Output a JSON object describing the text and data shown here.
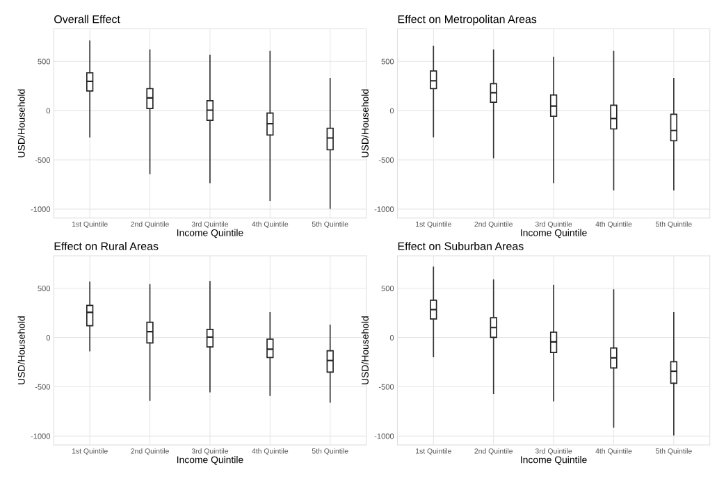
{
  "chart_data": [
    {
      "type": "box",
      "title": "Overall Effect",
      "xlabel": "Income Quintile",
      "ylabel": "USD/Household",
      "categories": [
        "1st Quintile",
        "2nd Quintile",
        "3rd Quintile",
        "4th Quintile",
        "5th Quintile"
      ],
      "ylim": [
        -1090,
        830
      ],
      "yticks": [
        -1000,
        -500,
        0,
        500
      ],
      "grid": true,
      "boxes": [
        {
          "low": -267,
          "q1": 200,
          "median": 297,
          "q3": 384,
          "high": 706
        },
        {
          "low": -639,
          "q1": 21,
          "median": 129,
          "q3": 223,
          "high": 614
        },
        {
          "low": -731,
          "q1": -99,
          "median": 5,
          "q3": 101,
          "high": 561
        },
        {
          "low": -910,
          "q1": -248,
          "median": -133,
          "q3": -25,
          "high": 602
        },
        {
          "low": -991,
          "q1": -398,
          "median": -278,
          "q3": -179,
          "high": 326
        }
      ]
    },
    {
      "type": "box",
      "title": "Effect on Metropolitan Areas",
      "xlabel": "Income Quintile",
      "ylabel": "USD/Household",
      "categories": [
        "1st Quintile",
        "2nd Quintile",
        "3rd Quintile",
        "4th Quintile",
        "5th Quintile"
      ],
      "ylim": [
        -1090,
        830
      ],
      "yticks": [
        -1000,
        -500,
        0,
        500
      ],
      "grid": true,
      "boxes": [
        {
          "low": -264,
          "q1": 223,
          "median": 303,
          "q3": 402,
          "high": 653
        },
        {
          "low": -478,
          "q1": 85,
          "median": 182,
          "q3": 274,
          "high": 614
        },
        {
          "low": -731,
          "q1": -57,
          "median": 46,
          "q3": 159,
          "high": 540
        },
        {
          "low": -805,
          "q1": -186,
          "median": -80,
          "q3": 55,
          "high": 602
        },
        {
          "low": -805,
          "q1": -306,
          "median": -202,
          "q3": -37,
          "high": 326
        }
      ]
    },
    {
      "type": "box",
      "title": "Effect on Rural Areas",
      "xlabel": "Income Quintile",
      "ylabel": "USD/Household",
      "categories": [
        "1st Quintile",
        "2nd Quintile",
        "3rd Quintile",
        "4th Quintile",
        "5th Quintile"
      ],
      "ylim": [
        -1090,
        830
      ],
      "yticks": [
        -1000,
        -500,
        0,
        500
      ],
      "grid": true,
      "boxes": [
        {
          "low": -134,
          "q1": 120,
          "median": 256,
          "q3": 326,
          "high": 563
        },
        {
          "low": -637,
          "q1": -55,
          "median": 60,
          "q3": 155,
          "high": 536
        },
        {
          "low": -550,
          "q1": -95,
          "median": 5,
          "q3": 83,
          "high": 568
        },
        {
          "low": -587,
          "q1": -203,
          "median": -118,
          "q3": -16,
          "high": 252
        },
        {
          "low": -656,
          "q1": -351,
          "median": -233,
          "q3": -134,
          "high": 125
        }
      ]
    },
    {
      "type": "box",
      "title": "Effect on Suburban Areas",
      "xlabel": "Income Quintile",
      "ylabel": "USD/Household",
      "categories": [
        "1st Quintile",
        "2nd Quintile",
        "3rd Quintile",
        "4th Quintile",
        "5th Quintile"
      ],
      "ylim": [
        -1090,
        830
      ],
      "yticks": [
        -1000,
        -500,
        0,
        500
      ],
      "grid": true,
      "boxes": [
        {
          "low": -194,
          "q1": 189,
          "median": 284,
          "q3": 379,
          "high": 714
        },
        {
          "low": -568,
          "q1": 2,
          "median": 102,
          "q3": 201,
          "high": 585
        },
        {
          "low": -642,
          "q1": -152,
          "median": -44,
          "q3": 55,
          "high": 529
        },
        {
          "low": -910,
          "q1": -309,
          "median": -206,
          "q3": -106,
          "high": 483
        },
        {
          "low": -988,
          "q1": -464,
          "median": -342,
          "q3": -245,
          "high": 252
        }
      ]
    }
  ]
}
